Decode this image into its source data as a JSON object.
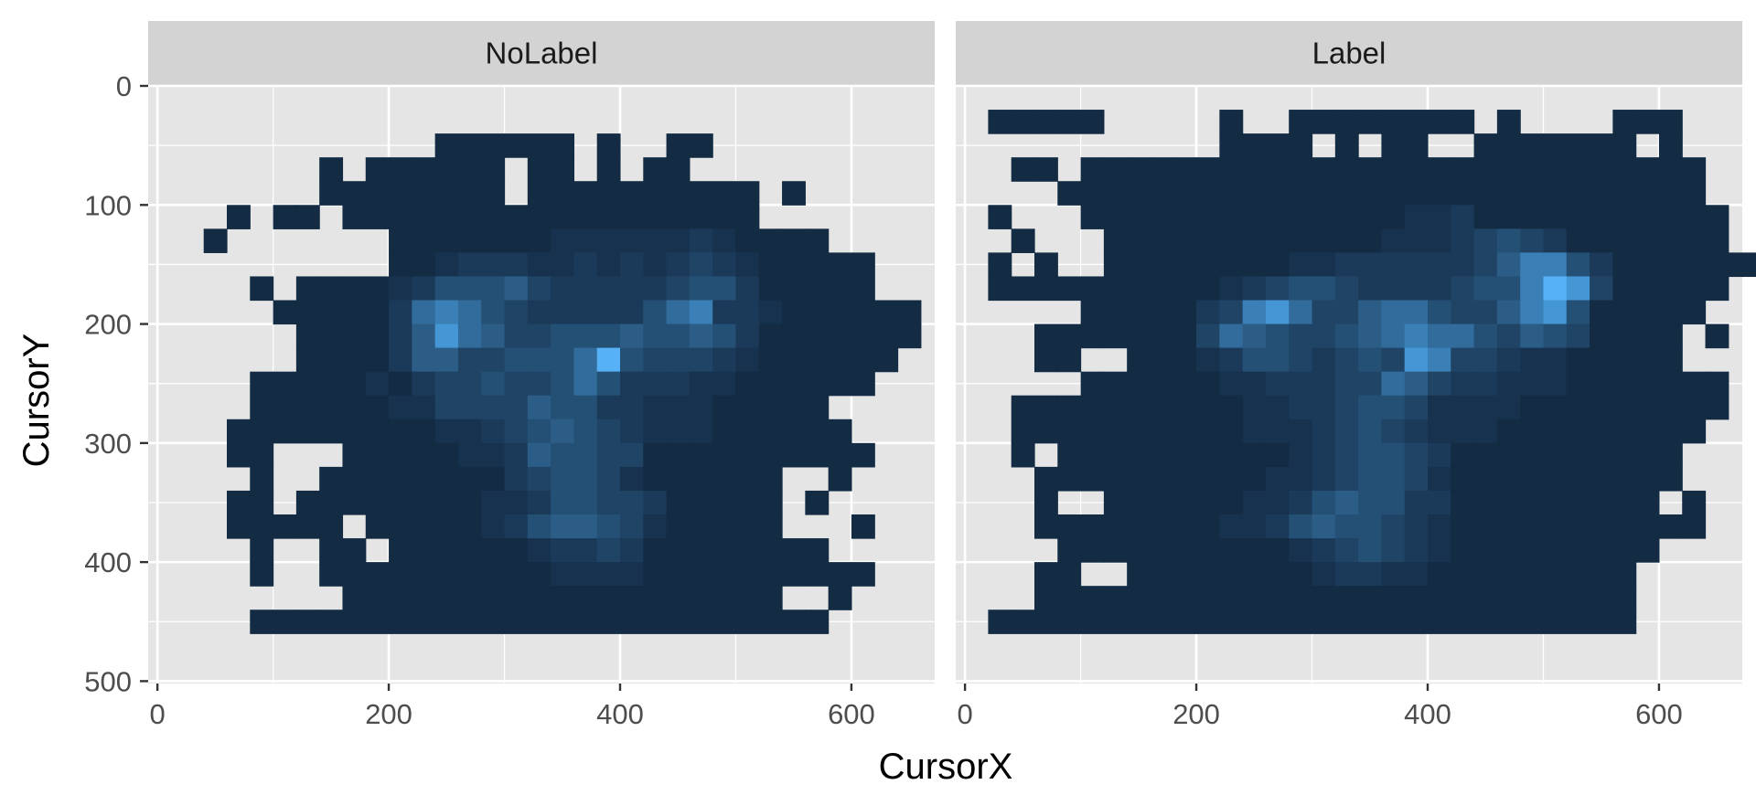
{
  "chart_data": {
    "type": "heatmap",
    "title": "",
    "xlabel": "CursorX",
    "ylabel": "CursorY",
    "y_reversed": true,
    "xlim": [
      -8,
      672
    ],
    "ylim": [
      0,
      502
    ],
    "x_ticks": [
      0,
      200,
      400,
      600
    ],
    "y_ticks": [
      0,
      100,
      200,
      300,
      400,
      500
    ],
    "bin_width": 20,
    "bin_height": 20,
    "bin_x_start": 20,
    "bin_y_start": 20,
    "grid": true,
    "facets": [
      {
        "label": "NoLabel",
        "rows": [
          "....................................",
          "...........000000.0..00.............",
          "......0.000000.00.0.00..............",
          "......00000000.0000000000.0.........",
          "..0.00.000000000000000000...........",
          ".0.......0000000111111210000........",
          ".........001222112121232100000......",
          "...0.0000124445322222344200000......",
          "....0000026764322222467221000000....",
          ".....000025865334445445420000000....",
          ".....00002553344469433321000000.....",
          "...000001023343346422211000000......",
          "...0000001133335442211100000........",
          "..000000000112345432111000000.......",
          "..00...00000112544330000000000......",
          "...0..00000000234431000000..0.......",
          "..00.000000001124433200000.0........",
          "..00000.000001245543100000...0......",
          "...0..00.0000001223200000000........",
          "...0..000000000011110000000000......",
          ".......0000000000000000000..0.......",
          "...0000000000000000000000000........"
        ]
      },
      {
        "label": "Label",
        "rows": [
          "00000.....0..00000000.0....000......",
          "..........0000.0.00..0000000.0......",
          ".00.000000000000000000000000000.....",
          "...0000000000000000000000000000.....",
          "0...0000000000000011200000000000....",
          ".0...000000000000111234320000000....",
          "0.0..00000000112222223577420000000..",
          "00000000001234432222344798300000....",
          "....000002378633566433578400000.....",
          "..0000000365433456766435430000.0....",
          "..00..000124432343873321100000......",
          "....0000001122233653221110000000....",
          ".0000000000112234431111000000000....",
          ".000000000011123432111000000000.....",
          ".0.000000000012344320000000000......",
          "..0000000000112344310000000000......",
          "..0..000000112454422000000000.0.....",
          "..00000000112454432100000000000.....",
          "...00000000001234321000000000.......",
          "..00..0000000012211000000000........",
          "..00000000000000000000000000........",
          "0000000000000000000000000000........"
        ]
      }
    ]
  },
  "colors": {
    "panel_background": "#e5e5e5",
    "strip_background": "#d3d3d3",
    "gridline": "#ffffff",
    "palette": [
      "#132b43",
      "#17324e",
      "#1b3a5a",
      "#204466",
      "#255075",
      "#2b5d87",
      "#326c9c",
      "#3a7fb5",
      "#4496d4",
      "#56b1f7"
    ]
  }
}
